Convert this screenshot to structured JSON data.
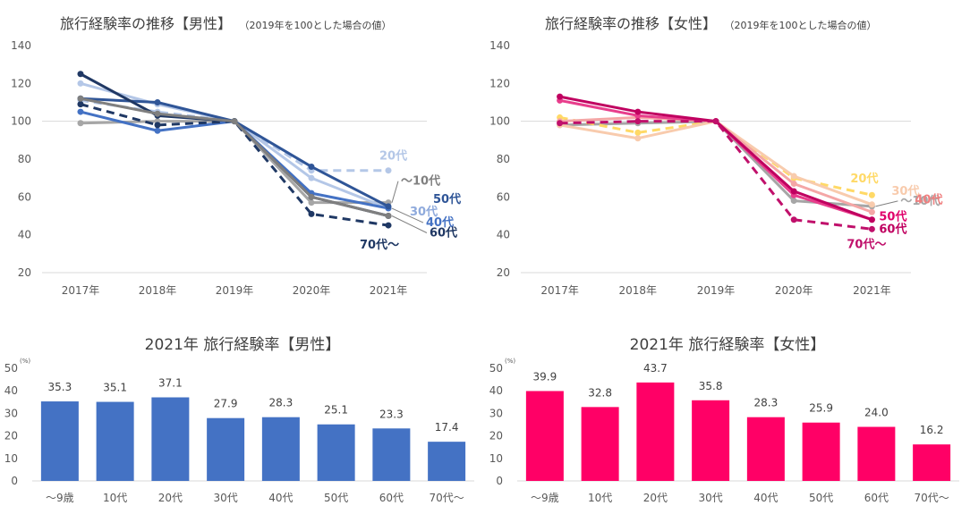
{
  "chart_data": [
    {
      "id": "line-male",
      "type": "line",
      "title": "旅行経験率の推移【男性】",
      "subtitle": "（2019年を100とした場合の値）",
      "categories": [
        "2017年",
        "2018年",
        "2019年",
        "2020年",
        "2021年"
      ],
      "ylim": [
        20,
        140
      ],
      "yticks": [
        20,
        40,
        60,
        80,
        100,
        120,
        140
      ],
      "reference_line": 100,
      "grid": false,
      "series": [
        {
          "name": "〜10代",
          "values": [
            99,
            100,
            100,
            57,
            57
          ],
          "color": "#A6A6A6",
          "dashed": false
        },
        {
          "name": "20代",
          "values": [
            111,
            105,
            100,
            74,
            74
          ],
          "color": "#B4C7E7",
          "dashed": true
        },
        {
          "name": "30代",
          "values": [
            120,
            109,
            100,
            70,
            54
          ],
          "color": "#B4C7E7",
          "dashed": false
        },
        {
          "name": "40代",
          "values": [
            105,
            95,
            100,
            62,
            54
          ],
          "color": "#4472C4",
          "dashed": false
        },
        {
          "name": "50代",
          "values": [
            112,
            110,
            100,
            76,
            55
          ],
          "color": "#2F5597",
          "dashed": false
        },
        {
          "name": "60代",
          "values": [
            125,
            103,
            100,
            60,
            50
          ],
          "color": "#203864",
          "dashed": false
        },
        {
          "name": "70代〜",
          "values": [
            109,
            98,
            100,
            51,
            45
          ],
          "color": "#1F3864",
          "dashed": true
        },
        {
          "name": "",
          "values": [
            112,
            104,
            100,
            60,
            50
          ],
          "color": "#7F7F7F",
          "dashed": false
        }
      ]
    },
    {
      "id": "line-female",
      "type": "line",
      "title": "旅行経験率の推移【女性】",
      "subtitle": "（2019年を100とした場合の値）",
      "categories": [
        "2017年",
        "2018年",
        "2019年",
        "2020年",
        "2021年"
      ],
      "ylim": [
        20,
        140
      ],
      "yticks": [
        20,
        40,
        60,
        80,
        100,
        120,
        140
      ],
      "reference_line": 100,
      "grid": false,
      "series": [
        {
          "name": "〜10代",
          "values": [
            98,
            99,
            100,
            58,
            55
          ],
          "color": "#A6A6A6",
          "dashed": false
        },
        {
          "name": "20代",
          "values": [
            102,
            94,
            100,
            70,
            61
          ],
          "color": "#FFD966",
          "dashed": true
        },
        {
          "name": "30代",
          "values": [
            98,
            91,
            100,
            71,
            56
          ],
          "color": "#F8CBAD",
          "dashed": false
        },
        {
          "name": "40代",
          "values": [
            100,
            102,
            100,
            67,
            52
          ],
          "color": "#F4A6A6",
          "dashed": false
        },
        {
          "name": "50代",
          "values": [
            111,
            103,
            100,
            61,
            48
          ],
          "color": "#E83E8C",
          "dashed": false
        },
        {
          "name": "60代",
          "values": [
            113,
            105,
            100,
            63,
            48
          ],
          "color": "#C00060",
          "dashed": false
        },
        {
          "name": "70代〜",
          "values": [
            99,
            100,
            100,
            48,
            43
          ],
          "color": "#C0106B",
          "dashed": true
        }
      ]
    },
    {
      "id": "bar-male",
      "type": "bar",
      "title": "2021年 旅行経験率【男性】",
      "unit": "(%)",
      "categories": [
        "〜9歳",
        "10代",
        "20代",
        "30代",
        "40代",
        "50代",
        "60代",
        "70代〜"
      ],
      "values": [
        35.3,
        35.1,
        37.1,
        27.9,
        28.3,
        25.1,
        23.3,
        17.4
      ],
      "value_labels": [
        "35.3",
        "35.1",
        "37.1",
        "27.9",
        "28.3",
        "25.1",
        "23.3",
        "17.4"
      ],
      "ylim": [
        0,
        50
      ],
      "yticks": [
        0,
        10,
        20,
        30,
        40,
        50
      ],
      "color": "#4472C4",
      "grid": false
    },
    {
      "id": "bar-female",
      "type": "bar",
      "title": "2021年 旅行経験率【女性】",
      "unit": "(%)",
      "categories": [
        "〜9歳",
        "10代",
        "20代",
        "30代",
        "40代",
        "50代",
        "60代",
        "70代〜"
      ],
      "values": [
        39.9,
        32.8,
        43.7,
        35.8,
        28.3,
        25.9,
        24.0,
        16.2
      ],
      "value_labels": [
        "39.9",
        "32.8",
        "43.7",
        "35.8",
        "28.3",
        "25.9",
        "24.0",
        "16.2"
      ],
      "ylim": [
        0,
        50
      ],
      "yticks": [
        0,
        10,
        20,
        30,
        40,
        50
      ],
      "color": "#FF0066",
      "grid": false
    }
  ]
}
